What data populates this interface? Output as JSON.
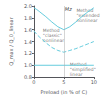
{
  "chart_data": {
    "type": "line",
    "xlabel": "Preload (in % of C)",
    "ylabel": "Q_max / Q_0_linear",
    "xlim": [
      0,
      10
    ],
    "ylim": [
      0.8,
      2.0
    ],
    "xticks": [
      0,
      5,
      10
    ],
    "yticks": [
      0.8,
      {
        "value": 1.0,
        "label": "1.0"
      },
      1.2,
      1.4,
      1.6,
      1.8,
      {
        "value": 2.0,
        "label": "2.0"
      }
    ],
    "grid": false,
    "series": [
      {
        "color": "#66ccdd",
        "line_style": "solid",
        "x": [
          0,
          0.5,
          1,
          2,
          3,
          4,
          5,
          6,
          7,
          8,
          9,
          10
        ],
        "values": [
          1.97,
          1.94,
          1.9,
          1.82,
          1.73,
          1.65,
          1.6,
          1.65,
          1.73,
          1.82,
          1.9,
          1.97
        ]
      },
      {
        "color": "#66ccdd",
        "line_style": "dashed",
        "x": [
          0,
          0.5,
          1,
          2,
          3,
          4,
          5,
          6,
          7,
          8,
          9,
          10
        ],
        "values": [
          1.58,
          1.52,
          1.47,
          1.38,
          1.3,
          1.25,
          1.22,
          1.25,
          1.28,
          1.32,
          1.36,
          1.4
        ]
      },
      {
        "color": "#66ccdd",
        "line_style": "solid",
        "x": [
          0,
          10
        ],
        "values": [
          1.0,
          1.0
        ]
      }
    ],
    "vline": {
      "x": 5,
      "label": "Mz",
      "color": "#aaaaaa"
    },
    "annotations": [
      {
        "text": "Method\n\"extended\"\nnonlinear",
        "x": 7.1,
        "y": 1.84
      },
      {
        "text": "Method\n\"classic\"\nnonlinear",
        "x": 1.5,
        "y": 1.5
      },
      {
        "text": "Method\n\"simplified\"\nlinear",
        "x": 6.0,
        "y": 0.93
      }
    ]
  }
}
